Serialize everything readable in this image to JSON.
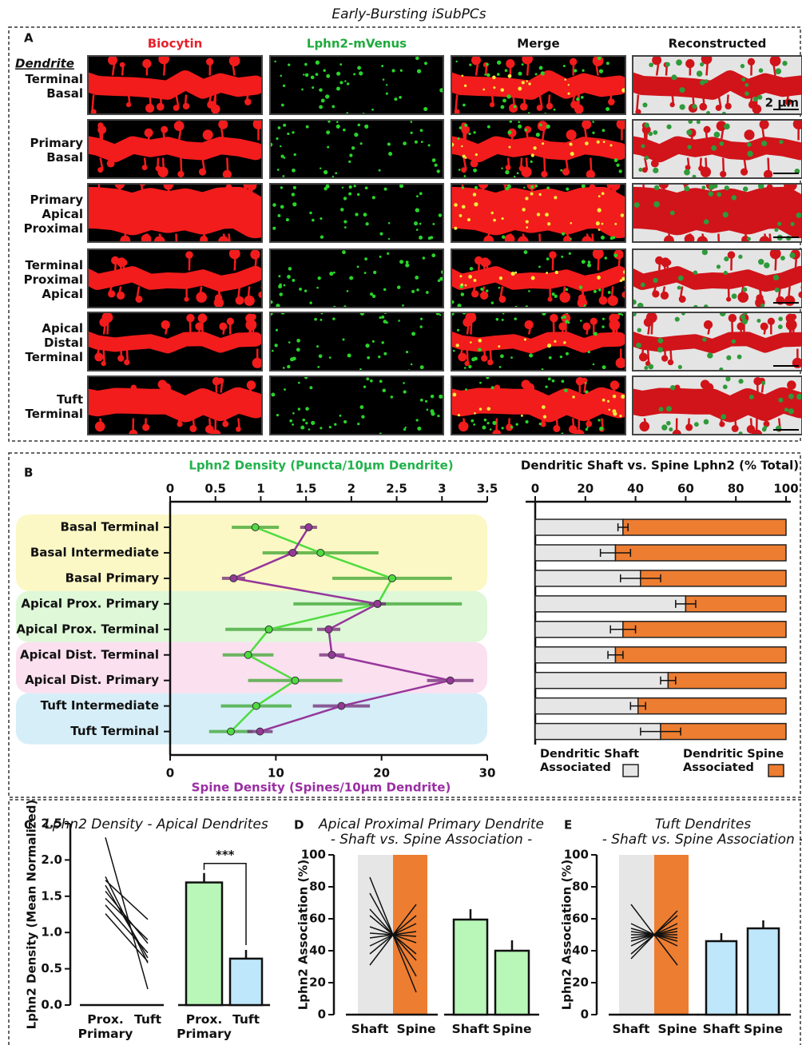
{
  "title": "Early-Bursting iSubPCs",
  "panel_a": {
    "label": "A",
    "columns": [
      "Biocytin",
      "Lphn2-mVenus",
      "Merge",
      "Reconstructed"
    ],
    "column_colors": [
      "#e8202a",
      "#1faa3c",
      "#111111",
      "#111111"
    ],
    "row_header": "Dendrite",
    "rows": [
      [
        "Terminal",
        "Basal"
      ],
      [
        "Primary",
        "Basal"
      ],
      [
        "Primary",
        "Apical",
        "Proximal"
      ],
      [
        "Terminal",
        "Proximal",
        "Apical"
      ],
      [
        "Apical",
        "Distal",
        "Terminal"
      ],
      [
        "Tuft",
        "Terminal"
      ]
    ],
    "scale_bar": "2 µm"
  },
  "chart_data": [
    {
      "type": "dual_dot_line",
      "panel": "B",
      "categories": [
        "Basal Terminal",
        "Basal Intermediate",
        "Basal Primary",
        "Apical Prox. Primary",
        "Apical Prox. Terminal",
        "Apical Dist. Terminal",
        "Apical Dist. Primary",
        "Tuft Intermediate",
        "Tuft Terminal"
      ],
      "xlabel": "Lphn2 Density (Puncta/10µm Dendrite)",
      "xlim": [
        0,
        3.5
      ],
      "xticks": [
        0,
        0.5,
        1,
        1.5,
        2,
        2.5,
        3,
        3.5
      ],
      "x2label": "Spine Density (Spines/10µm Dendrite)",
      "x2lim": [
        0,
        30
      ],
      "x2ticks": [
        0,
        10,
        20,
        30
      ],
      "series": [
        {
          "color": "#4fdc3f",
          "axis": "x",
          "values": [
            0.94,
            1.66,
            2.45,
            2.29,
            1.09,
            0.86,
            1.38,
            0.95,
            0.67
          ],
          "errors": [
            0.26,
            0.64,
            0.66,
            0.93,
            0.48,
            0.28,
            0.52,
            0.39,
            0.24
          ]
        },
        {
          "color": "#96379a",
          "axis": "x2",
          "values": [
            13.1,
            11.6,
            6.0,
            19.6,
            15.0,
            15.3,
            26.5,
            16.2,
            8.5
          ],
          "errors": [
            0.8,
            0.5,
            1.1,
            0.8,
            1.1,
            1.2,
            2.2,
            2.7,
            1.2
          ]
        }
      ]
    },
    {
      "type": "stacked_barh",
      "title": "Dendritic Shaft vs. Spine Lphn2 (% Total)",
      "xlim": [
        0,
        100
      ],
      "xticks": [
        0,
        20,
        40,
        60,
        80,
        100
      ],
      "legend": "bottom",
      "series": [
        {
          "name": "Dendritic Shaft Associated",
          "color": "#e6e6e6",
          "values": [
            35,
            32,
            42,
            60,
            35,
            32,
            53,
            41,
            50
          ],
          "errors": [
            2,
            6,
            8,
            4,
            5,
            3,
            3,
            3,
            8
          ]
        },
        {
          "name": "Dendritic Spine Associated",
          "color": "#ed7d31",
          "values": [
            65,
            68,
            58,
            40,
            65,
            68,
            47,
            59,
            50
          ]
        }
      ]
    },
    {
      "type": "paired_and_bar",
      "panel": "C",
      "title": "Lphn2 Density - Apical Dendrites",
      "ylabel": "Lphn2 Density (Mean Normalized)",
      "ylim": [
        0,
        2.5
      ],
      "yticks": [
        {
          "value": 0,
          "label": "0.0"
        },
        0.5,
        {
          "value": 1,
          "label": "1.0"
        },
        1.5,
        {
          "value": 2,
          "label": "2.0"
        },
        2.5
      ],
      "categories": [
        "Prox. Primary",
        "Tuft"
      ],
      "pairs": [
        [
          2.31,
          0.22
        ],
        [
          1.77,
          0.58
        ],
        [
          1.72,
          1.18
        ],
        [
          1.65,
          0.65
        ],
        [
          1.57,
          0.85
        ],
        [
          1.47,
          0.9
        ],
        [
          1.38,
          0.72
        ],
        [
          1.26,
          0.6
        ]
      ],
      "bars": {
        "values": [
          1.69,
          0.64
        ],
        "errors": [
          0.13,
          0.12
        ],
        "colors": [
          "#b9f7b9",
          "#bfe7fb"
        ]
      },
      "significance": "***"
    },
    {
      "type": "paired_and_bar",
      "panel": "D",
      "title": "Apical Proximal Primary Dendrite",
      "subtitle": "- Shaft vs. Spine Association -",
      "ylabel": "Lphn2 Association (%)",
      "ylim": [
        0,
        100
      ],
      "yticks": [
        0,
        20,
        40,
        60,
        80,
        100
      ],
      "categories": [
        "Shaft",
        "Spine"
      ],
      "band_colors": [
        "#e6e6e6",
        "#ed7d31"
      ],
      "pairs": [
        [
          86,
          14
        ],
        [
          76,
          24
        ],
        [
          66,
          34
        ],
        [
          62,
          38
        ],
        [
          55,
          45
        ],
        [
          51,
          49
        ],
        [
          48,
          52
        ],
        [
          43,
          57
        ],
        [
          38,
          62
        ],
        [
          31,
          69
        ]
      ],
      "bars": {
        "values": [
          59.5,
          40
        ],
        "errors": [
          6.5,
          6.5
        ],
        "colors": [
          "#b9f7b9",
          "#b9f7b9"
        ]
      }
    },
    {
      "type": "paired_and_bar",
      "panel": "E",
      "title": "Tuft Dendrites",
      "subtitle": "- Shaft vs. Spine Association -",
      "ylabel": "Lphn2 Association (%)",
      "ylim": [
        0,
        100
      ],
      "yticks": [
        0,
        20,
        40,
        60,
        80,
        100
      ],
      "categories": [
        "Shaft",
        "Spine"
      ],
      "band_colors": [
        "#e6e6e6",
        "#ed7d31"
      ],
      "pairs": [
        [
          69,
          31
        ],
        [
          57,
          43
        ],
        [
          54,
          46
        ],
        [
          52,
          48
        ],
        [
          50,
          50
        ],
        [
          48,
          52
        ],
        [
          46,
          54
        ],
        [
          43,
          57
        ],
        [
          38,
          62
        ],
        [
          35,
          65
        ]
      ],
      "bars": {
        "values": [
          46,
          54
        ],
        "errors": [
          5,
          5
        ],
        "colors": [
          "#bfe7fb",
          "#bfe7fb"
        ]
      }
    }
  ]
}
